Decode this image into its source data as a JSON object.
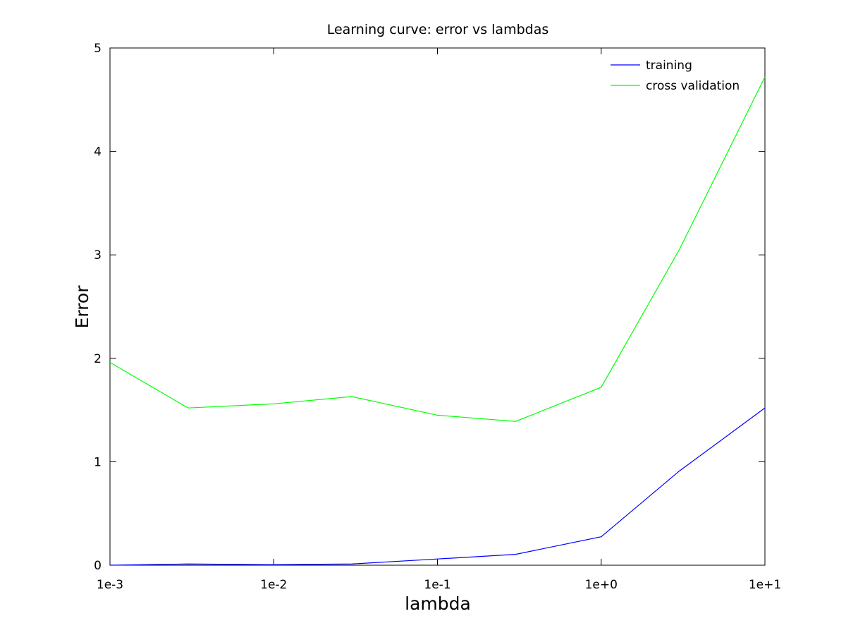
{
  "chart_data": {
    "type": "line",
    "title": "Learning curve: error vs lambdas",
    "xlabel": "lambda",
    "ylabel": "Error",
    "x_scale": "log",
    "x": [
      0.001,
      0.003,
      0.01,
      0.03,
      0.1,
      0.3,
      1,
      3,
      10
    ],
    "xlim": [
      0.001,
      10
    ],
    "ylim": [
      0,
      5
    ],
    "x_ticks": [
      0.001,
      0.01,
      0.1,
      1,
      10
    ],
    "x_tick_labels": [
      "1e-3",
      "1e-2",
      "1e-1",
      "1e+0",
      "1e+1"
    ],
    "y_ticks": [
      0,
      1,
      2,
      3,
      4,
      5
    ],
    "y_tick_labels": [
      "0",
      "1",
      "2",
      "3",
      "4",
      "5"
    ],
    "grid": false,
    "legend_position": "top-right",
    "series": [
      {
        "name": "training",
        "color": "#0000ff",
        "values": [
          0.0,
          0.012,
          0.005,
          0.012,
          0.06,
          0.105,
          0.275,
          0.91,
          1.52
        ]
      },
      {
        "name": "cross validation",
        "color": "#00ff00",
        "values": [
          1.96,
          1.52,
          1.56,
          1.63,
          1.45,
          1.39,
          1.72,
          3.05,
          4.72
        ]
      }
    ]
  }
}
